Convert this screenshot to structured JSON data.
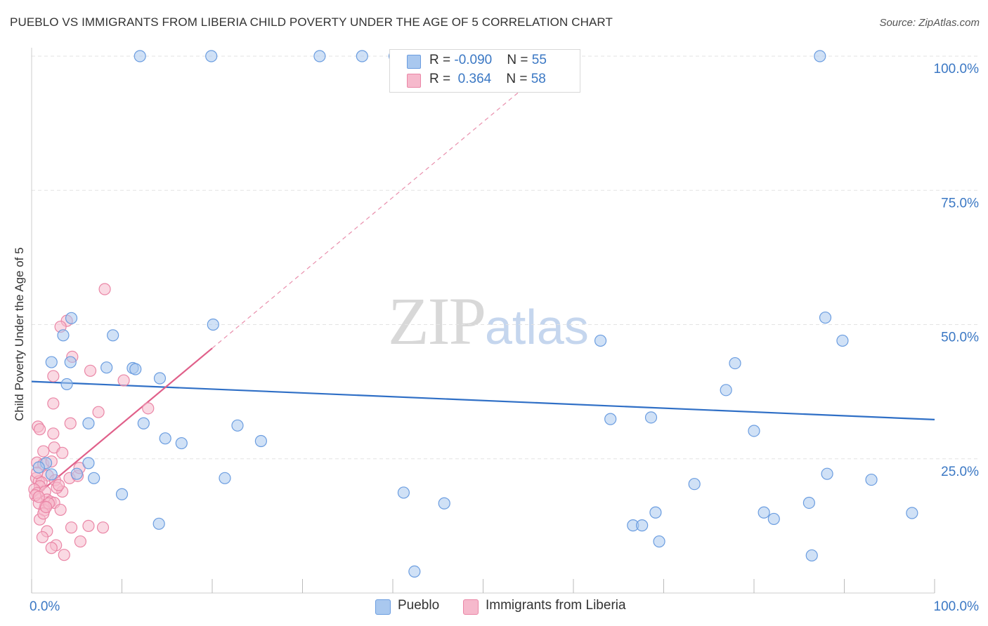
{
  "title": "PUEBLO VS IMMIGRANTS FROM LIBERIA CHILD POVERTY UNDER THE AGE OF 5 CORRELATION CHART",
  "source": "Source: ZipAtlas.com",
  "watermark": {
    "zip": "ZIP",
    "atlas": "atlas"
  },
  "legend": {
    "pueblo": {
      "r_label": "R = ",
      "r_value": "-0.090",
      "n_label": "N = ",
      "n_value": "55"
    },
    "liberia": {
      "r_label": "R = ",
      "r_value": " 0.364",
      "n_label": "N = ",
      "n_value": "58"
    }
  },
  "bottom_legend": {
    "pueblo": "Pueblo",
    "liberia": "Immigrants from Liberia"
  },
  "colors": {
    "pueblo_fill": "#a9c8ef",
    "pueblo_stroke": "#6b9de0",
    "pueblo_line": "#2f6fc6",
    "liberia_fill": "#f6b9cc",
    "liberia_stroke": "#ea86a6",
    "liberia_line": "#e0608a",
    "grid": "#e3e3e3",
    "axis_label": "#3b78c4"
  },
  "chart_data": {
    "type": "scatter",
    "title": "PUEBLO VS IMMIGRANTS FROM LIBERIA CHILD POVERTY UNDER THE AGE OF 5 CORRELATION CHART",
    "xlabel": "",
    "ylabel": "Child Poverty Under the Age of 5",
    "xlim": [
      0,
      100
    ],
    "ylim": [
      0,
      100
    ],
    "x_tick_labels": [
      "0.0%",
      "100.0%"
    ],
    "y_ticks": [
      25,
      50,
      75,
      100
    ],
    "y_tick_labels": [
      "25.0%",
      "50.0%",
      "75.0%",
      "100.0%"
    ],
    "grid": true,
    "series": [
      {
        "name": "Pueblo",
        "x": [
          12.0,
          19.9,
          31.9,
          36.6,
          40.2,
          87.3,
          3.5,
          4.4,
          9.0,
          11.2,
          20.1,
          4.3,
          2.2,
          8.3,
          11.5,
          3.9,
          14.2,
          6.3,
          12.4,
          22.8,
          14.8,
          16.6,
          25.4,
          1.6,
          6.3,
          0.8,
          5.0,
          6.9,
          2.2,
          10.0,
          21.4,
          14.1,
          41.2,
          45.7,
          63.0,
          64.1,
          68.6,
          77.9,
          80.0,
          87.9,
          89.8,
          73.4,
          76.9,
          88.1,
          93.0,
          69.1,
          86.1,
          97.5,
          82.2,
          81.1,
          66.6,
          67.6,
          69.5,
          86.4,
          42.4
        ],
        "y": [
          100.0,
          100.0,
          100.0,
          100.0,
          100.0,
          100.0,
          48.0,
          51.2,
          48.0,
          41.9,
          50.0,
          43.0,
          43.0,
          42.0,
          41.7,
          38.9,
          40.0,
          31.6,
          31.6,
          31.2,
          28.8,
          27.9,
          28.3,
          24.2,
          24.2,
          23.4,
          22.2,
          21.4,
          22.1,
          18.4,
          21.4,
          12.9,
          18.7,
          16.7,
          47.0,
          32.4,
          32.7,
          42.8,
          30.2,
          51.3,
          47.0,
          20.3,
          37.8,
          22.2,
          21.1,
          15.0,
          16.8,
          14.9,
          13.8,
          15.0,
          12.6,
          12.6,
          9.6,
          7.0,
          4.0
        ]
      },
      {
        "name": "Immigrants from Liberia",
        "x": [
          8.1,
          3.9,
          3.2,
          2.4,
          2.4,
          6.5,
          4.5,
          0.7,
          0.9,
          4.3,
          2.4,
          2.5,
          1.3,
          0.6,
          1.3,
          2.2,
          3.4,
          1.8,
          0.5,
          0.8,
          1.1,
          0.9,
          0.3,
          0.6,
          1.5,
          2.6,
          1.7,
          2.1,
          1.5,
          0.8,
          1.4,
          4.2,
          5.1,
          3.4,
          2.5,
          7.4,
          12.9,
          10.2,
          5.3,
          6.3,
          4.4,
          3.2,
          2.7,
          2.2,
          1.7,
          1.2,
          0.9,
          0.4,
          0.8,
          1.3,
          1.9,
          2.8,
          3.6,
          5.4,
          7.9,
          1.6,
          3.0,
          0.6
        ],
        "y": [
          56.6,
          50.7,
          49.6,
          40.4,
          35.3,
          41.4,
          44.0,
          31.0,
          30.5,
          31.6,
          29.7,
          27.1,
          26.4,
          24.3,
          24.0,
          24.5,
          26.1,
          21.9,
          21.4,
          20.8,
          20.6,
          19.9,
          19.3,
          18.6,
          18.9,
          21.0,
          17.4,
          17.0,
          16.1,
          16.7,
          15.4,
          21.4,
          21.8,
          18.9,
          16.8,
          33.7,
          34.4,
          39.6,
          23.3,
          12.5,
          12.2,
          15.5,
          8.9,
          8.4,
          11.5,
          10.4,
          13.7,
          18.2,
          17.9,
          14.8,
          16.7,
          19.6,
          7.1,
          9.6,
          12.2,
          16.0,
          20.1,
          22.4
        ]
      }
    ],
    "trend_lines": [
      {
        "name": "Pueblo",
        "x": [
          0,
          100
        ],
        "y": [
          39.4,
          32.3
        ]
      },
      {
        "name": "Immigrants from Liberia",
        "x": [
          0,
          20
        ],
        "y": [
          17.5,
          45.6
        ],
        "extended": {
          "x": [
            20,
            100
          ],
          "y": [
            45.6,
            158.0
          ]
        }
      }
    ]
  }
}
